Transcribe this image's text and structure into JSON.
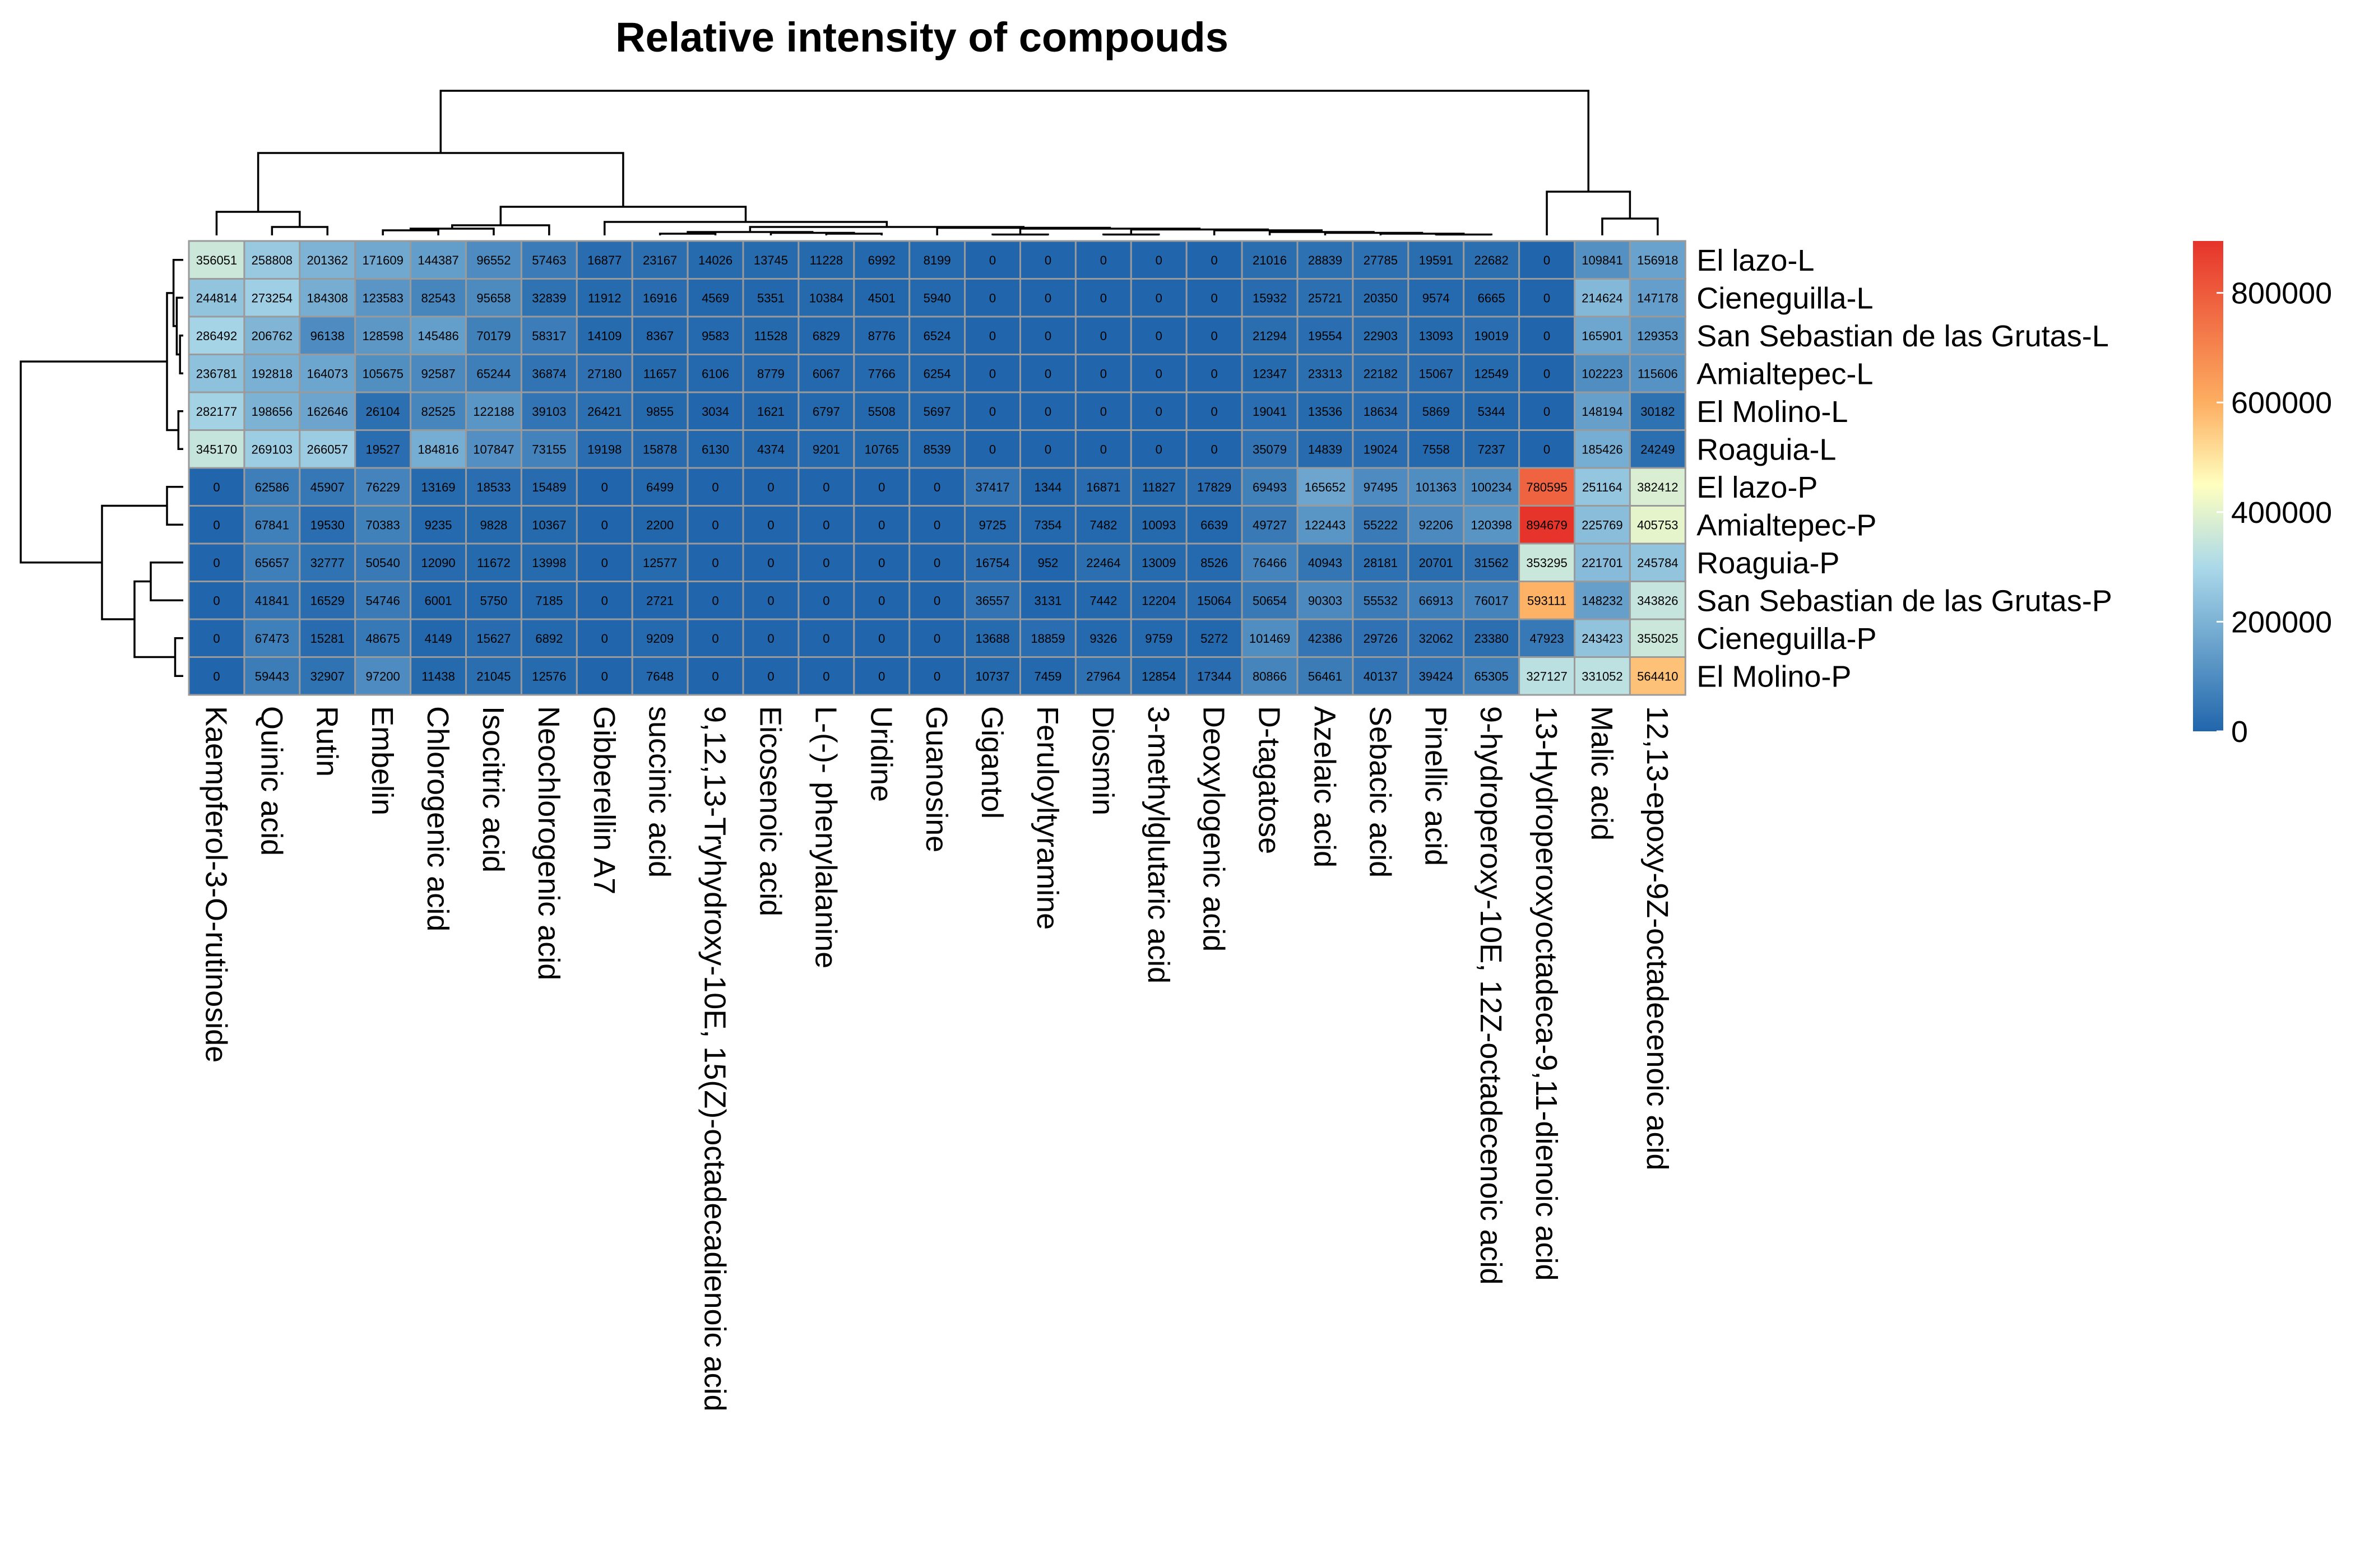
{
  "chart_data": {
    "type": "heatmap",
    "title": "Relative intensity of compouds",
    "rows": [
      "El lazo-L",
      "Cieneguilla-L",
      "San Sebastian de las Grutas-L",
      "Amialtepec-L",
      "El Molino-L",
      "Roaguia-L",
      "El lazo-P",
      "Amialtepec-P",
      "Roaguia-P",
      "San Sebastian de las Grutas-P",
      "Cieneguilla-P",
      "El Molino-P"
    ],
    "columns": [
      "Kaempferol-3-O-rutinoside",
      "Quinic acid",
      "Rutin",
      "Embelin",
      "Chlorogenic acid",
      "Isocitric acid",
      "Neochlorogenic acid",
      "Gibberellin A7",
      "succinic acid",
      "9,12,13-Tryhydroxy-10E, 15(Z)-octadecadienoic acid",
      "Eicosenoic acid",
      "L-(-)- phenylalanine",
      "Uridine",
      "Guanosine",
      "Gigantol",
      "Feruloyltyramine",
      "Diosmin",
      "3-methylglutaric acid",
      "Deoxylogenic acid",
      "D-tagatose",
      "Azelaic acid",
      "Sebacic acid",
      "Pinellic acid",
      "9-hydroperoxy-10E, 12Z-octadecenoic acid",
      "13-Hydroperoxyoctadeca-9,11-dienoic acid",
      "Malic acid",
      "12,13-epoxy-9Z-octadecenoic acid"
    ],
    "values": [
      [
        356051,
        258808,
        201362,
        171609,
        144387,
        96552,
        57463,
        16877,
        23167,
        14026,
        13745,
        11228,
        6992,
        8199,
        0,
        0,
        0,
        0,
        0,
        21016,
        28839,
        27785,
        19591,
        22682,
        0,
        109841,
        156918
      ],
      [
        244814,
        273254,
        184308,
        123583,
        82543,
        95658,
        32839,
        11912,
        16916,
        4569,
        5351,
        10384,
        4501,
        5940,
        0,
        0,
        0,
        0,
        0,
        15932,
        25721,
        20350,
        9574,
        6665,
        0,
        214624,
        147178
      ],
      [
        286492,
        206762,
        96138,
        128598,
        145486,
        70179,
        58317,
        14109,
        8367,
        9583,
        11528,
        6829,
        8776,
        6524,
        0,
        0,
        0,
        0,
        0,
        21294,
        19554,
        22903,
        13093,
        19019,
        0,
        165901,
        129353
      ],
      [
        236781,
        192818,
        164073,
        105675,
        92587,
        65244,
        36874,
        27180,
        11657,
        6106,
        8779,
        6067,
        7766,
        6254,
        0,
        0,
        0,
        0,
        0,
        12347,
        23313,
        22182,
        15067,
        12549,
        0,
        102223,
        115606
      ],
      [
        282177,
        198656,
        162646,
        26104,
        82525,
        122188,
        39103,
        26421,
        9855,
        3034,
        1621,
        6797,
        5508,
        5697,
        0,
        0,
        0,
        0,
        0,
        19041,
        13536,
        18634,
        5869,
        5344,
        0,
        148194,
        30182
      ],
      [
        345170,
        269103,
        266057,
        19527,
        184816,
        107847,
        73155,
        19198,
        15878,
        6130,
        4374,
        9201,
        10765,
        8539,
        0,
        0,
        0,
        0,
        0,
        35079,
        14839,
        19024,
        7558,
        7237,
        0,
        185426,
        24249
      ],
      [
        0,
        62586,
        45907,
        76229,
        13169,
        18533,
        15489,
        0,
        6499,
        0,
        0,
        0,
        0,
        0,
        37417,
        1344,
        16871,
        11827,
        17829,
        69493,
        165652,
        97495,
        101363,
        100234,
        780595,
        251164,
        382412
      ],
      [
        0,
        67841,
        19530,
        70383,
        9235,
        9828,
        10367,
        0,
        2200,
        0,
        0,
        0,
        0,
        0,
        9725,
        7354,
        7482,
        10093,
        6639,
        49727,
        122443,
        55222,
        92206,
        120398,
        894679,
        225769,
        405753
      ],
      [
        0,
        65657,
        32777,
        50540,
        12090,
        11672,
        13998,
        0,
        12577,
        0,
        0,
        0,
        0,
        0,
        16754,
        952,
        22464,
        13009,
        8526,
        76466,
        40943,
        28181,
        20701,
        31562,
        353295,
        221701,
        245784
      ],
      [
        0,
        41841,
        16529,
        54746,
        6001,
        5750,
        7185,
        0,
        2721,
        0,
        0,
        0,
        0,
        0,
        36557,
        3131,
        7442,
        12204,
        15064,
        50654,
        90303,
        55532,
        66913,
        76017,
        593111,
        148232,
        343826
      ],
      [
        0,
        67473,
        15281,
        48675,
        4149,
        15627,
        6892,
        0,
        9209,
        0,
        0,
        0,
        0,
        0,
        13688,
        18859,
        9326,
        9759,
        5272,
        101469,
        42386,
        29726,
        32062,
        23380,
        47923,
        243423,
        355025
      ],
      [
        0,
        59443,
        32907,
        97200,
        11438,
        21045,
        12576,
        0,
        7648,
        0,
        0,
        0,
        0,
        0,
        10737,
        7459,
        27964,
        12854,
        17344,
        80866,
        56461,
        40137,
        39424,
        65305,
        327127,
        331052,
        564410
      ]
    ],
    "color_scale": {
      "min": 0,
      "max": 894679,
      "stops": [
        {
          "value": 0,
          "color": "#2166ac"
        },
        {
          "value": 300000,
          "color": "#abd9e9"
        },
        {
          "value": 450000,
          "color": "#ffffbf"
        },
        {
          "value": 600000,
          "color": "#fdae61"
        },
        {
          "value": 894679,
          "color": "#e6342b"
        }
      ],
      "legend_ticks": [
        0,
        200000,
        400000,
        600000,
        800000
      ],
      "legend_ticks_text": [
        "0",
        "200000",
        "400000",
        "600000",
        "800000"
      ]
    },
    "row_dendrogram": true,
    "column_dendrogram": true,
    "cell_values_shown": true,
    "legend_position": "right"
  }
}
